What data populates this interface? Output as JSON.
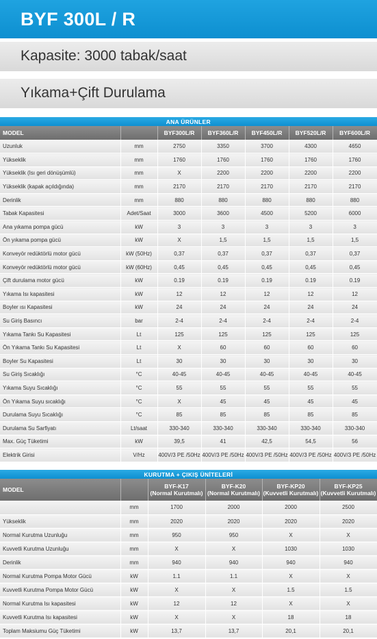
{
  "header": {
    "title": "BYF 300L / R",
    "capacity": "Kapasite: 3000 tabak/saat",
    "wash_type": "Yıkama+Çift Durulama"
  },
  "main_table": {
    "section_title": "ANA ÜRÜNLER",
    "model_label": "MODEL",
    "columns": [
      "BYF300L/R",
      "BYF360L/R",
      "BYF450L/R",
      "BYF520L/R",
      "BYF600L/R"
    ],
    "rows": [
      {
        "label": "Uzunluk",
        "unit": "mm",
        "values": [
          "2750",
          "3350",
          "3700",
          "4300",
          "4650"
        ]
      },
      {
        "label": "Yükseklik",
        "unit": "mm",
        "values": [
          "1760",
          "1760",
          "1760",
          "1760",
          "1760"
        ]
      },
      {
        "label": "Yükseklik (Isı geri dönüşümlü)",
        "unit": "mm",
        "values": [
          "X",
          "2200",
          "2200",
          "2200",
          "2200"
        ]
      },
      {
        "label": "Yükseklik (kapak açıldığında)",
        "unit": "mm",
        "values": [
          "2170",
          "2170",
          "2170",
          "2170",
          "2170"
        ]
      },
      {
        "label": "Derinlik",
        "unit": "mm",
        "values": [
          "880",
          "880",
          "880",
          "880",
          "880"
        ]
      },
      {
        "label": "Tabak Kapasitesi",
        "unit": "Adet/Saat",
        "values": [
          "3000",
          "3600",
          "4500",
          "5200",
          "6000"
        ]
      },
      {
        "label": "Ana yıkama pompa gücü",
        "unit": "kW",
        "values": [
          "3",
          "3",
          "3",
          "3",
          "3"
        ]
      },
      {
        "label": "Ön yıkama pompa gücü",
        "unit": "kW",
        "values": [
          "X",
          "1,5",
          "1,5",
          "1,5",
          "1,5"
        ]
      },
      {
        "label": "Konveyör redüktörlü motor gücü",
        "unit": "kW (50Hz)",
        "values": [
          "0,37",
          "0,37",
          "0,37",
          "0,37",
          "0,37"
        ]
      },
      {
        "label": "Konveyör redüktörlü motor gücü",
        "unit": "kW (60Hz)",
        "values": [
          "0,45",
          "0,45",
          "0,45",
          "0,45",
          "0,45"
        ]
      },
      {
        "label": "Çift durulama motor gücü",
        "unit": "kW",
        "values": [
          "0.19",
          "0.19",
          "0.19",
          "0.19",
          "0.19"
        ]
      },
      {
        "label": "Yıkama Isı kapasitesi",
        "unit": "kW",
        "values": [
          "12",
          "12",
          "12",
          "12",
          "12"
        ]
      },
      {
        "label": "Boyler ısı Kapasitesi",
        "unit": "kW",
        "values": [
          "24",
          "24",
          "24",
          "24",
          "24"
        ]
      },
      {
        "label": "Su Giriş Basıncı",
        "unit": "bar",
        "values": [
          "2-4",
          "2-4",
          "2-4",
          "2-4",
          "2-4"
        ]
      },
      {
        "label": "Yıkama Tankı Su Kapasitesi",
        "unit": "Lt",
        "values": [
          "125",
          "125",
          "125",
          "125",
          "125"
        ]
      },
      {
        "label": "Ön Yıkama Tankı Su Kapasitesi",
        "unit": "Lt",
        "values": [
          "X",
          "60",
          "60",
          "60",
          "60"
        ]
      },
      {
        "label": "Boyler Su Kapasitesi",
        "unit": "Lt",
        "values": [
          "30",
          "30",
          "30",
          "30",
          "30"
        ]
      },
      {
        "label": "Su Giriş Sıcaklığı",
        "unit": "°C",
        "values": [
          "40-45",
          "40-45",
          "40-45",
          "40-45",
          "40-45"
        ]
      },
      {
        "label": "Yıkama Suyu Sıcaklığı",
        "unit": "°C",
        "values": [
          "55",
          "55",
          "55",
          "55",
          "55"
        ]
      },
      {
        "label": "Ön Yıkama Suyu sıcaklığı",
        "unit": "°C",
        "values": [
          "X",
          "45",
          "45",
          "45",
          "45"
        ]
      },
      {
        "label": "Durulama Suyu Sıcaklığı",
        "unit": "°C",
        "values": [
          "85",
          "85",
          "85",
          "85",
          "85"
        ]
      },
      {
        "label": "Durulama Su Sarfiyatı",
        "unit": "Lt/saat",
        "values": [
          "330-340",
          "330-340",
          "330-340",
          "330-340",
          "330-340"
        ]
      },
      {
        "label": "Max. Güç Tüketimi",
        "unit": "kW",
        "values": [
          "39,5",
          "41",
          "42,5",
          "54,5",
          "56"
        ]
      },
      {
        "label": "Elektrik Girisi",
        "unit": "V/Hz",
        "values": [
          "400V/3 PE /50Hz",
          "400V/3 PE /50Hz",
          "400V/3 PE /50Hz",
          "400V/3 PE /50Hz",
          "400V/3 PE /50Hz"
        ]
      }
    ]
  },
  "dry_table": {
    "section_title": "KURUTMA + ÇIKIŞ ÜNİTELERİ",
    "model_label": "MODEL",
    "columns": [
      {
        "name": "BYF-K17",
        "sub": "(Normal Kurutmalı)"
      },
      {
        "name": "BYF-K20",
        "sub": "(Normal Kurutmalı)"
      },
      {
        "name": "BYF-KP20",
        "sub": "(Kuvvetli Kurutmalı)"
      },
      {
        "name": "BYF-KP25",
        "sub": "(Kuvvetli Kurutmalı)"
      }
    ],
    "rows": [
      {
        "label": "",
        "unit": "mm",
        "values": [
          "1700",
          "2000",
          "2000",
          "2500"
        ]
      },
      {
        "label": "Yükseklik",
        "unit": "mm",
        "values": [
          "2020",
          "2020",
          "2020",
          "2020"
        ]
      },
      {
        "label": "Normal Kurutma Uzunluğu",
        "unit": "mm",
        "values": [
          "950",
          "950",
          "X",
          "X"
        ]
      },
      {
        "label": "Kuvvetli Kurutma Uzunluğu",
        "unit": "mm",
        "values": [
          "X",
          "X",
          "1030",
          "1030"
        ]
      },
      {
        "label": "Derinlik",
        "unit": "mm",
        "values": [
          "940",
          "940",
          "940",
          "940"
        ]
      },
      {
        "label": "Normal Kurutma Pompa Motor Gücü",
        "unit": "kW",
        "values": [
          "1.1",
          "1.1",
          "X",
          "X"
        ]
      },
      {
        "label": "Kuvvetli Kurutma Pompa Motor Gücü",
        "unit": "kW",
        "values": [
          "X",
          "X",
          "1.5",
          "1.5"
        ]
      },
      {
        "label": "Normal Kurutma Isı kapasitesi",
        "unit": "kW",
        "values": [
          "12",
          "12",
          "X",
          "X"
        ]
      },
      {
        "label": "Kuvvetli Kurutma Isı kapasitesi",
        "unit": "kW",
        "values": [
          "X",
          "X",
          "18",
          "18"
        ]
      },
      {
        "label": "Toplam Maksiumu Güç Tüketimi",
        "unit": "kW",
        "values": [
          "13,7",
          "13,7",
          "20,1",
          "20,1"
        ]
      }
    ]
  }
}
